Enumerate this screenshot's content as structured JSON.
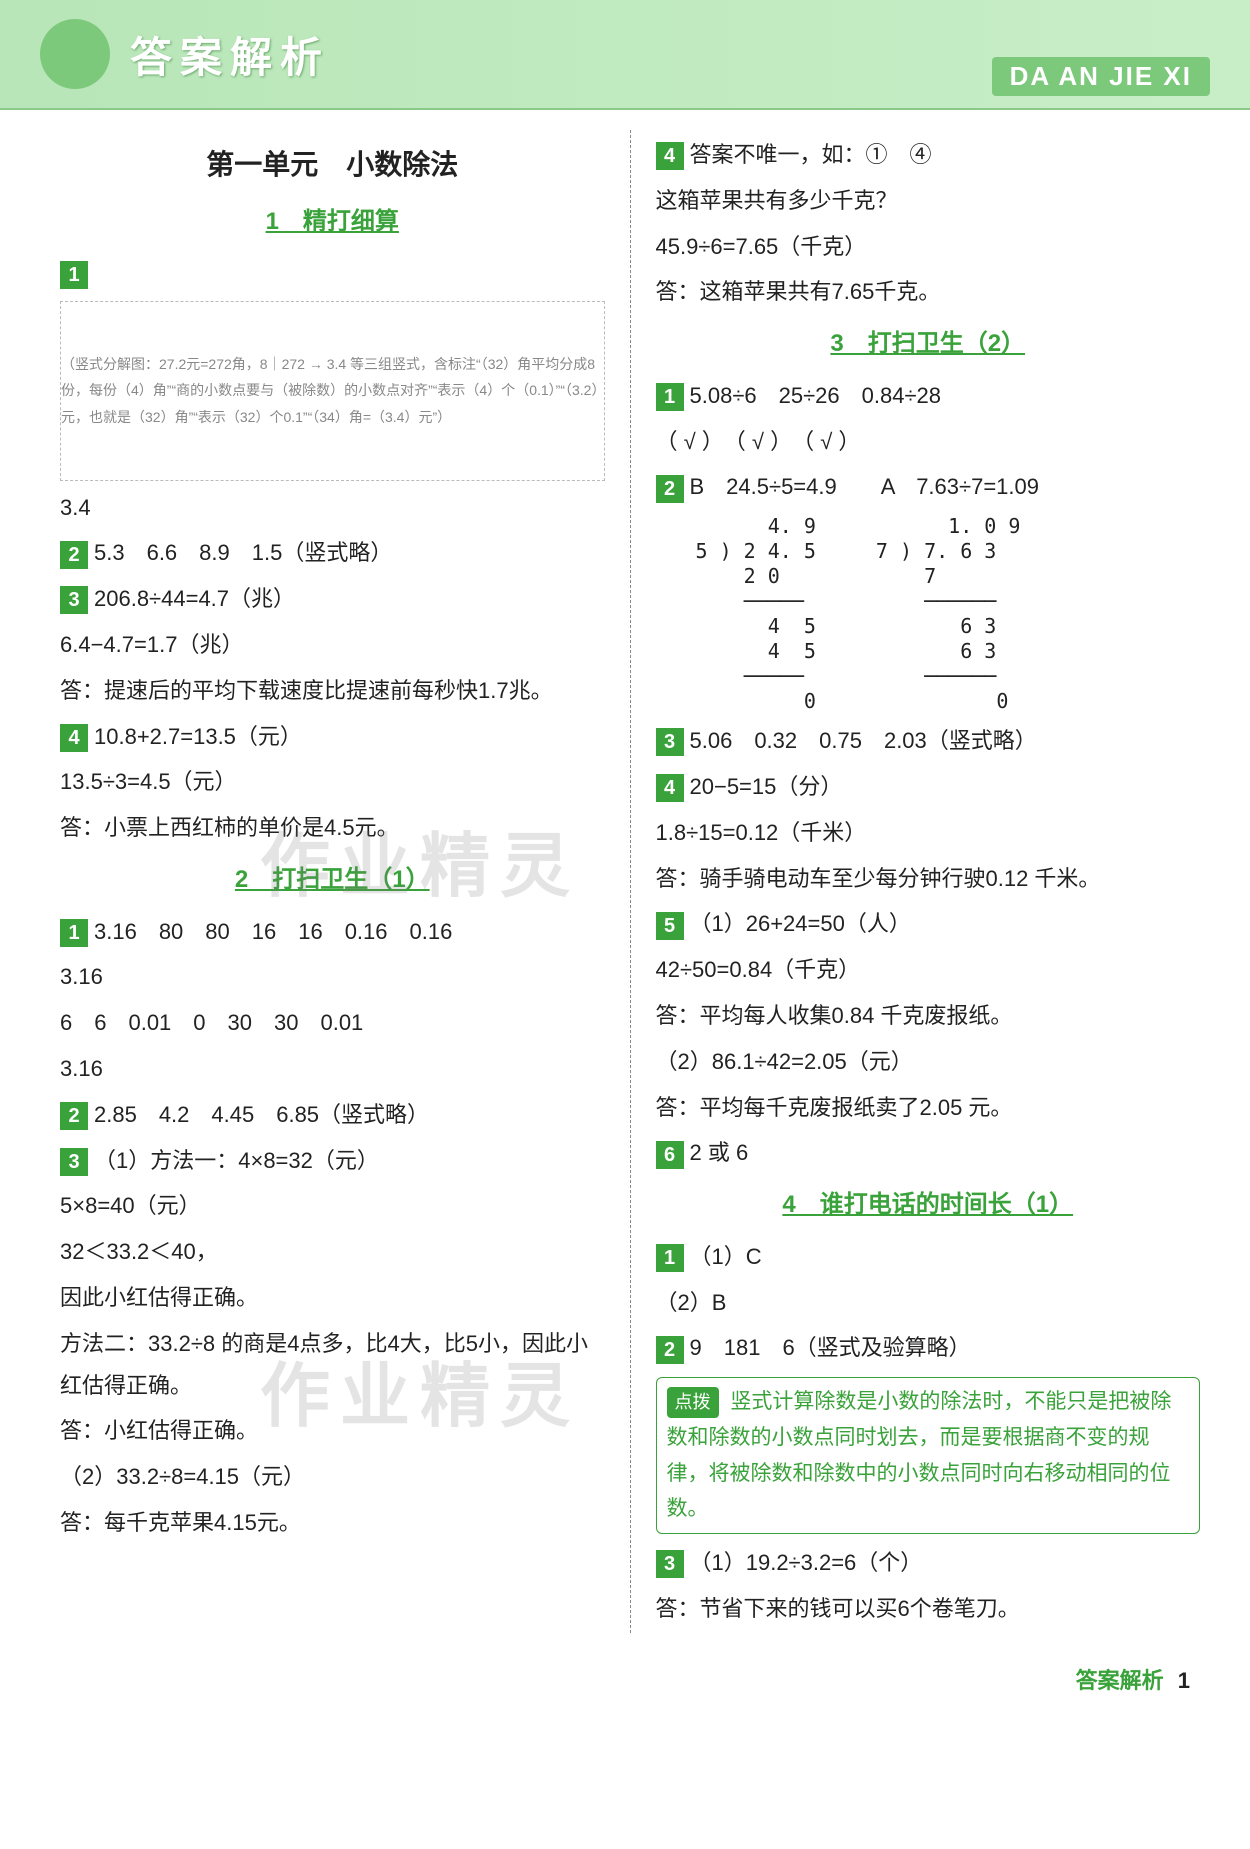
{
  "header": {
    "title": "答案解析",
    "pinyin": "DA AN JIE XI"
  },
  "watermark": "作业精灵",
  "left": {
    "unit_title": "第一单元　小数除法",
    "sec1_title": "1　精打细算",
    "q1_diagram_note": "（竖式分解图：27.2元=272角，8｜272 → 3.4 等三组竖式，含标注“（32）角平均分成8份，每份（4）角”“商的小数点要与（被除数）的小数点对齐”“表示（4）个（0.1）”“（3.2）元，也就是（32）角”“表示（32）个0.1”“（34）角=（3.4）元”）",
    "q1_answer": "3.4",
    "q2": "5.3　6.6　8.9　1.5（竖式略）",
    "q3_line1": "206.8÷44=4.7（兆）",
    "q3_line2": "6.4−4.7=1.7（兆）",
    "q3_ans": "答：提速后的平均下载速度比提速前每秒快1.7兆。",
    "q4_line1": "10.8+2.7=13.5（元）",
    "q4_line2": "13.5÷3=4.5（元）",
    "q4_ans": "答：小票上西红柿的单价是4.5元。",
    "sec2_title": "2　打扫卫生（1）",
    "s2_q1_l1": "3.16　80　80　16　16　0.16　0.16",
    "s2_q1_l2": "3.16",
    "s2_q1_l3": "6　6　0.01　0　30　30　0.01",
    "s2_q1_l4": "3.16",
    "s2_q2": "2.85　4.2　4.45　6.85（竖式略）",
    "s2_q3_l1": "（1）方法一：4×8=32（元）",
    "s2_q3_l2": "5×8=40（元）",
    "s2_q3_l3": "32＜33.2＜40，",
    "s2_q3_l4": "因此小红估得正确。",
    "s2_q3_l5": "方法二：33.2÷8 的商是4点多，比4大，比5小，因此小红估得正确。",
    "s2_q3_l6": "答：小红估得正确。",
    "s2_q3_l7": "（2）33.2÷8=4.15（元）",
    "s2_q3_l8": "答：每千克苹果4.15元。"
  },
  "right": {
    "q4_l1": "答案不唯一，如：①　④",
    "q4_l2": "这箱苹果共有多少千克？",
    "q4_l3": "45.9÷6=7.65（千克）",
    "q4_l4": "答：这箱苹果共有7.65千克。",
    "sec3_title": "3　打扫卫生（2）",
    "s3_q1_l1": "5.08÷6　25÷26　0.84÷28",
    "s3_q1_l2": "（ √ ）　（ √ ）　（ √ ）",
    "s3_q2_head": "B　24.5÷5=4.9　　A　7.63÷7=1.09",
    "s3_q2_div1": "      4. 9\n5 ) 2 4. 5\n    2 0\n    ─────\n      4  5\n      4  5\n    ─────\n         0",
    "s3_q2_div2": "      1. 0 9\n7 ) 7. 6 3\n    7\n    ──────\n       6 3\n       6 3\n    ──────\n          0",
    "s3_q3": "5.06　0.32　0.75　2.03（竖式略）",
    "s3_q4_l1": "20−5=15（分）",
    "s3_q4_l2": "1.8÷15=0.12（千米）",
    "s3_q4_l3": "答：骑手骑电动车至少每分钟行驶0.12 千米。",
    "s3_q5_l1": "（1）26+24=50（人）",
    "s3_q5_l2": "42÷50=0.84（千克）",
    "s3_q5_l3": "答：平均每人收集0.84 千克废报纸。",
    "s3_q5_l4": "（2）86.1÷42=2.05（元）",
    "s3_q5_l5": "答：平均每千克废报纸卖了2.05 元。",
    "s3_q6": "2 或 6",
    "sec4_title": "4　谁打电话的时间长（1）",
    "s4_q1_l1": "（1）C",
    "s4_q1_l2": "（2）B",
    "s4_q2": "9　181　6（竖式及验算略）",
    "tip_label": "点拨",
    "tip_text": "竖式计算除数是小数的除法时，不能只是把被除数和除数的小数点同时划去，而是要根据商不变的规律，将被除数和除数中的小数点同时向右移动相同的位数。",
    "s4_q3_l1": "（1）19.2÷3.2=6（个）",
    "s4_q3_l2": "答：节省下来的钱可以买6个卷笔刀。"
  },
  "footer": {
    "label": "答案解析",
    "page": "1"
  }
}
